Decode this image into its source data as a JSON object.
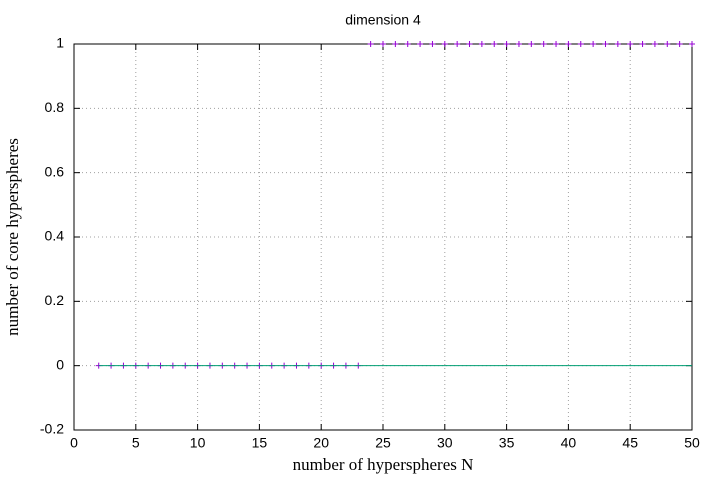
{
  "chart_data": {
    "type": "scatter",
    "title": "dimension 4",
    "xlabel": "number of hyperspheres N",
    "ylabel": "number of core hyperspheres",
    "x": [
      2,
      3,
      4,
      5,
      6,
      7,
      8,
      9,
      10,
      11,
      12,
      13,
      14,
      15,
      16,
      17,
      18,
      19,
      20,
      21,
      22,
      23,
      24,
      25,
      26,
      27,
      28,
      29,
      30,
      31,
      32,
      33,
      34,
      35,
      36,
      37,
      38,
      39,
      40,
      41,
      42,
      43,
      44,
      45,
      46,
      47,
      48,
      49,
      50
    ],
    "series": [
      {
        "mode": "points",
        "color": "#9400d3",
        "values": [
          0,
          0,
          0,
          0,
          0,
          0,
          0,
          0,
          0,
          0,
          0,
          0,
          0,
          0,
          0,
          0,
          0,
          0,
          0,
          0,
          0,
          0,
          1,
          1,
          1,
          1,
          1,
          1,
          1,
          1,
          1,
          1,
          1,
          1,
          1,
          1,
          1,
          1,
          1,
          1,
          1,
          1,
          1,
          1,
          1,
          1,
          1,
          1,
          1
        ]
      },
      {
        "mode": "lines",
        "color": "#009e73",
        "values": [
          0,
          0,
          0,
          0,
          0,
          0,
          0,
          0,
          0,
          0,
          0,
          0,
          0,
          0,
          0,
          0,
          0,
          0,
          0,
          0,
          0,
          0,
          0,
          0,
          0,
          0,
          0,
          0,
          0,
          0,
          0,
          0,
          0,
          0,
          0,
          0,
          0,
          0,
          0,
          0,
          0,
          0,
          0,
          0,
          0,
          0,
          0,
          0,
          0
        ]
      }
    ],
    "xlim": [
      0,
      50
    ],
    "xticks": [
      0,
      5,
      10,
      15,
      20,
      25,
      30,
      35,
      40,
      45,
      50
    ],
    "ylim": [
      -0.2,
      1
    ],
    "yticks": [
      -0.2,
      0,
      0.2,
      0.4,
      0.6,
      0.8,
      1
    ],
    "grid": true
  }
}
